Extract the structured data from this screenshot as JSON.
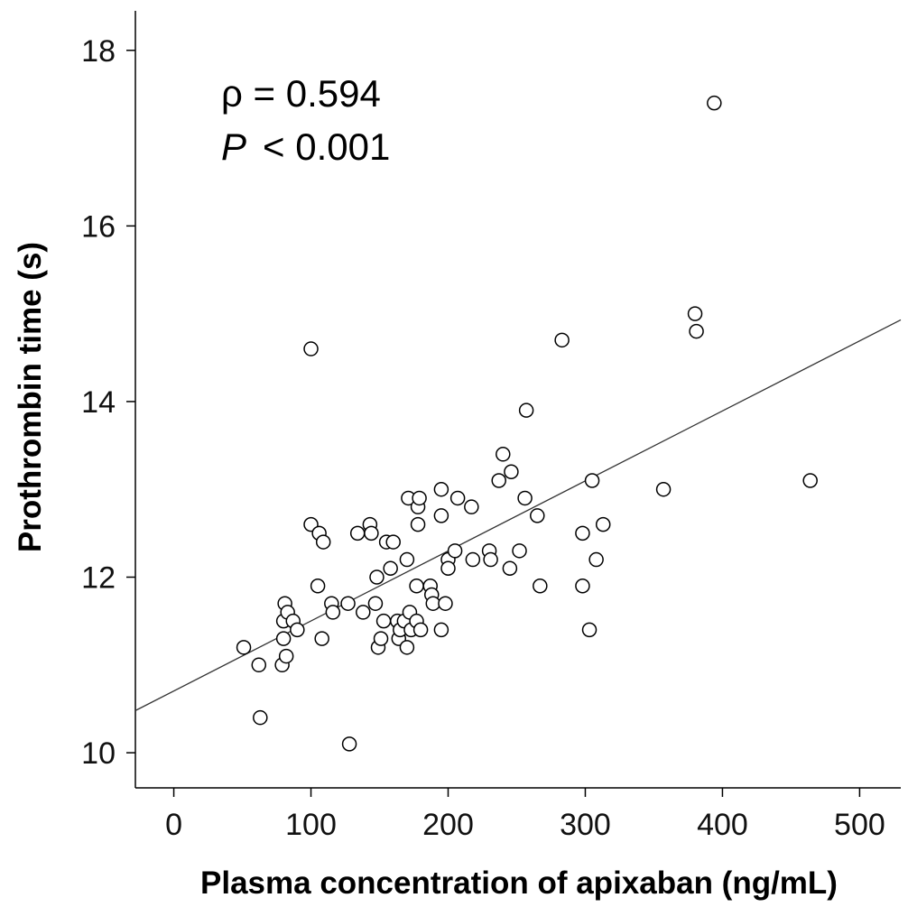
{
  "chart_data": {
    "type": "scatter",
    "title": "",
    "xlabel": "Plasma concentration of apixaban (ng/mL)",
    "ylabel": "Prothrombin time (s)",
    "xlim": [
      -28,
      530
    ],
    "ylim": [
      9.6,
      18.45
    ],
    "xticks": [
      0,
      100,
      200,
      300,
      400,
      500
    ],
    "yticks": [
      10,
      12,
      14,
      16,
      18
    ],
    "grid": false,
    "annotations": {
      "rho_text": "ρ = 0.594",
      "p_symbol": "P",
      "p_text": "< 0.001"
    },
    "regression_line": {
      "x": [
        -28,
        530
      ],
      "y": [
        10.48,
        14.93
      ]
    },
    "series": [
      {
        "marker": "open-circle",
        "points": [
          [
            51,
            11.2
          ],
          [
            62,
            11.0
          ],
          [
            63,
            10.4
          ],
          [
            79,
            11.0
          ],
          [
            80,
            11.3
          ],
          [
            80,
            11.5
          ],
          [
            81,
            11.7
          ],
          [
            82,
            11.1
          ],
          [
            83,
            11.6
          ],
          [
            87,
            11.5
          ],
          [
            90,
            11.4
          ],
          [
            100,
            14.6
          ],
          [
            100,
            12.6
          ],
          [
            105,
            11.9
          ],
          [
            106,
            12.5
          ],
          [
            108,
            11.3
          ],
          [
            109,
            12.4
          ],
          [
            115,
            11.7
          ],
          [
            116,
            11.6
          ],
          [
            127,
            11.7
          ],
          [
            128,
            10.1
          ],
          [
            134,
            12.5
          ],
          [
            138,
            11.6
          ],
          [
            143,
            12.6
          ],
          [
            144,
            12.5
          ],
          [
            147,
            11.7
          ],
          [
            148,
            12.0
          ],
          [
            149,
            11.2
          ],
          [
            151,
            11.3
          ],
          [
            153,
            11.5
          ],
          [
            155,
            12.4
          ],
          [
            158,
            12.1
          ],
          [
            160,
            12.4
          ],
          [
            163,
            11.5
          ],
          [
            164,
            11.3
          ],
          [
            165,
            11.4
          ],
          [
            168,
            11.5
          ],
          [
            170,
            11.2
          ],
          [
            170,
            12.2
          ],
          [
            171,
            12.9
          ],
          [
            172,
            11.6
          ],
          [
            173,
            11.4
          ],
          [
            177,
            11.5
          ],
          [
            177,
            11.9
          ],
          [
            178,
            12.6
          ],
          [
            178,
            12.8
          ],
          [
            179,
            12.9
          ],
          [
            180,
            11.4
          ],
          [
            187,
            11.9
          ],
          [
            188,
            11.8
          ],
          [
            189,
            11.7
          ],
          [
            195,
            11.4
          ],
          [
            195,
            12.7
          ],
          [
            195,
            13.0
          ],
          [
            198,
            11.7
          ],
          [
            200,
            12.2
          ],
          [
            200,
            12.1
          ],
          [
            205,
            12.3
          ],
          [
            207,
            12.9
          ],
          [
            217,
            12.8
          ],
          [
            218,
            12.2
          ],
          [
            230,
            12.3
          ],
          [
            231,
            12.2
          ],
          [
            237,
            13.1
          ],
          [
            240,
            13.4
          ],
          [
            245,
            12.1
          ],
          [
            246,
            13.2
          ],
          [
            252,
            12.3
          ],
          [
            256,
            12.9
          ],
          [
            257,
            13.9
          ],
          [
            265,
            12.7
          ],
          [
            267,
            11.9
          ],
          [
            283,
            14.7
          ],
          [
            298,
            12.5
          ],
          [
            298,
            11.9
          ],
          [
            303,
            11.4
          ],
          [
            305,
            13.1
          ],
          [
            308,
            12.2
          ],
          [
            313,
            12.6
          ],
          [
            357,
            13.0
          ],
          [
            380,
            15.0
          ],
          [
            381,
            14.8
          ],
          [
            394,
            17.4
          ],
          [
            464,
            13.1
          ]
        ]
      }
    ]
  }
}
